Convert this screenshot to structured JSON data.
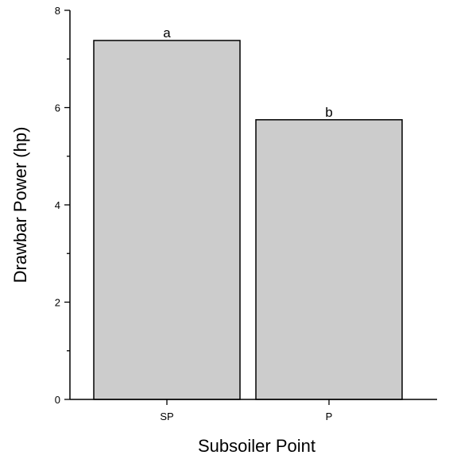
{
  "chart_data": {
    "type": "bar",
    "categories": [
      "SP",
      "P"
    ],
    "values": [
      7.38,
      5.75
    ],
    "data_labels": [
      "a",
      "b"
    ],
    "xlabel": "Subsoiler Point",
    "ylabel": "Drawbar Power (hp)",
    "ylim": [
      0,
      8
    ],
    "yticks": [
      0,
      2,
      4,
      6,
      8
    ],
    "bar_color": "#cccccc",
    "grid": false
  }
}
